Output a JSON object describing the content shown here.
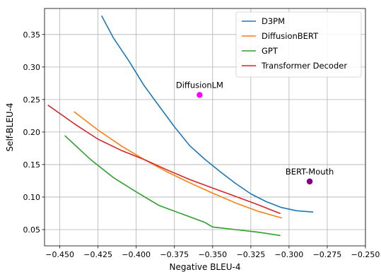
{
  "chart_data": {
    "type": "line",
    "title": "",
    "xlabel": "Negative BLEU-4",
    "ylabel": "Self-BLEU-4",
    "xlim": [
      -0.46,
      -0.25
    ],
    "ylim": [
      0.025,
      0.39
    ],
    "xticks": [
      -0.45,
      -0.425,
      -0.4,
      -0.375,
      -0.35,
      -0.325,
      -0.3,
      -0.275,
      -0.25
    ],
    "xtick_labels": [
      "−0.450",
      "−0.425",
      "−0.400",
      "−0.375",
      "−0.350",
      "−0.325",
      "−0.300",
      "−0.275",
      "−0.250"
    ],
    "yticks": [
      0.05,
      0.1,
      0.15,
      0.2,
      0.25,
      0.3,
      0.35
    ],
    "ytick_labels": [
      "0.05",
      "0.10",
      "0.15",
      "0.20",
      "0.25",
      "0.30",
      "0.35"
    ],
    "grid": true,
    "legend": "top-right",
    "series": [
      {
        "name": "D3PM",
        "color": "#1f77b4",
        "x": [
          -0.4225,
          -0.415,
          -0.405,
          -0.395,
          -0.385,
          -0.375,
          -0.365,
          -0.355,
          -0.345,
          -0.335,
          -0.325,
          -0.315,
          -0.305,
          -0.295,
          -0.29,
          -0.2845
        ],
        "y": [
          0.378,
          0.345,
          0.31,
          0.272,
          0.24,
          0.208,
          0.179,
          0.158,
          0.139,
          0.121,
          0.105,
          0.093,
          0.084,
          0.079,
          0.078,
          0.077
        ]
      },
      {
        "name": "DiffusionBERT",
        "color": "#ff7f0e",
        "x": [
          -0.4405,
          -0.425,
          -0.41,
          -0.395,
          -0.38,
          -0.365,
          -0.35,
          -0.335,
          -0.32,
          -0.305
        ],
        "y": [
          0.231,
          0.203,
          0.179,
          0.158,
          0.139,
          0.122,
          0.106,
          0.091,
          0.078,
          0.068
        ]
      },
      {
        "name": "GPT",
        "color": "#2ca02c",
        "x": [
          -0.4465,
          -0.43,
          -0.415,
          -0.4,
          -0.385,
          -0.37,
          -0.355,
          -0.35,
          -0.335,
          -0.32,
          -0.306
        ],
        "y": [
          0.194,
          0.158,
          0.13,
          0.108,
          0.087,
          0.074,
          0.061,
          0.054,
          0.05,
          0.046,
          0.041
        ]
      },
      {
        "name": "Transformer Decoder",
        "color": "#d62728",
        "x": [
          -0.4575,
          -0.44,
          -0.425,
          -0.41,
          -0.395,
          -0.38,
          -0.365,
          -0.35,
          -0.335,
          -0.32,
          -0.306
        ],
        "y": [
          0.241,
          0.212,
          0.189,
          0.172,
          0.158,
          0.142,
          0.127,
          0.114,
          0.101,
          0.088,
          0.075
        ]
      }
    ],
    "points": [
      {
        "label": "DiffusionLM",
        "x": -0.3585,
        "y": 0.257,
        "color": "#ff00ff"
      },
      {
        "label": "BERT-Mouth",
        "x": -0.2865,
        "y": 0.124,
        "color": "#800080"
      }
    ]
  }
}
